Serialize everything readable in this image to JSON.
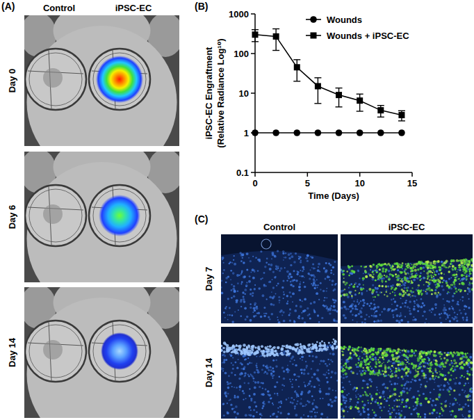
{
  "panels": {
    "a": {
      "label": "(A)",
      "columns": [
        "Control",
        "iPSC-EC"
      ],
      "rows": [
        "Day 0",
        "Day 6",
        "Day 14"
      ]
    },
    "b": {
      "label": "(B)"
    },
    "c": {
      "label": "(C)",
      "columns": [
        "Control",
        "iPSC-EC"
      ],
      "rows": [
        "Day 7",
        "Day 14"
      ]
    }
  },
  "chart_data": {
    "type": "line",
    "x": [
      0,
      2,
      4,
      6,
      8,
      10,
      12,
      14
    ],
    "series": [
      {
        "name": "Wounds",
        "color": "#000000",
        "marker": "circle",
        "values": [
          1,
          1,
          1,
          1,
          1,
          1,
          1,
          1
        ]
      },
      {
        "name": "Wounds + iPSC-EC",
        "color": "#000000",
        "marker": "square",
        "values": [
          300,
          270,
          45,
          15,
          9,
          6.5,
          3.7,
          2.8
        ],
        "error": [
          100,
          150,
          25,
          9.5,
          4.5,
          3,
          1.2,
          0.8
        ]
      }
    ],
    "x_label": "Time (Days)",
    "y_label": [
      "iPSC-EC Engraftment",
      "(Relative Radiance Log¹⁰)"
    ],
    "xlim": [
      0,
      15
    ],
    "xticks": [
      0,
      5,
      10,
      15
    ],
    "ylim": [
      0.1,
      1000
    ],
    "yticks": [
      0.1,
      1,
      10,
      100,
      1000
    ],
    "log": "y",
    "grid": false,
    "legend": "upper right"
  }
}
